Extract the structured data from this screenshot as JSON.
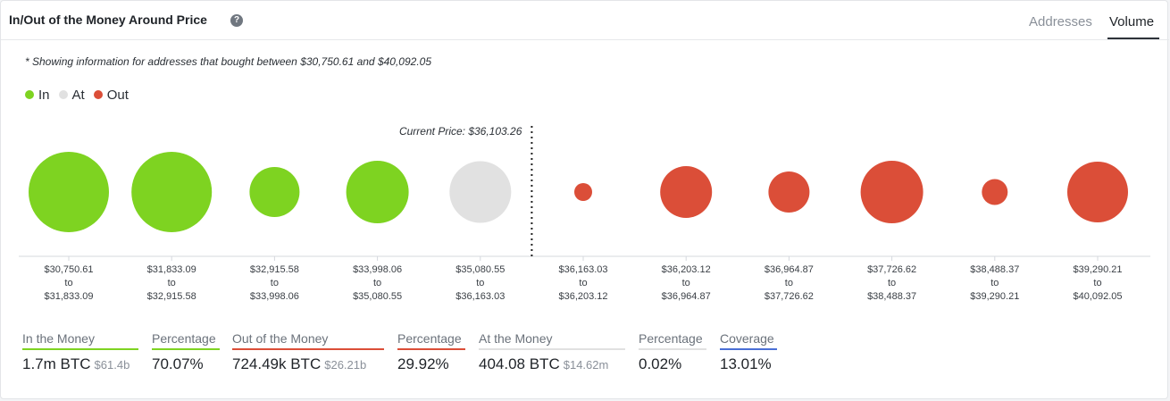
{
  "header": {
    "title": "In/Out of the Money Around Price",
    "help_icon": "question-circle-icon",
    "tabs": [
      {
        "label": "Addresses",
        "active": false
      },
      {
        "label": "Volume",
        "active": true
      }
    ]
  },
  "note": "* Showing information for addresses that bought between $30,750.61 and $40,092.05",
  "colors": {
    "in": "#7ed321",
    "at": "#e1e1e1",
    "out": "#db4e38",
    "coverage": "#4a6fd6"
  },
  "chart_data": {
    "type": "bubble",
    "legend": {
      "position": "top-left",
      "items": [
        {
          "label": "In",
          "key": "in"
        },
        {
          "label": "At",
          "key": "at"
        },
        {
          "label": "Out",
          "key": "out"
        }
      ]
    },
    "current_price_label": "Current Price: $36,103.26",
    "current_price_after_index": 4,
    "relative_size": [
      0.9,
      0.9,
      0.56,
      0.7,
      0.69,
      0.2,
      0.58,
      0.46,
      0.7,
      0.29,
      0.68
    ],
    "buckets": [
      {
        "from": "$30,750.61",
        "to_word": "to",
        "to": "$31,833.09",
        "status": "in"
      },
      {
        "from": "$31,833.09",
        "to_word": "to",
        "to": "$32,915.58",
        "status": "in"
      },
      {
        "from": "$32,915.58",
        "to_word": "to",
        "to": "$33,998.06",
        "status": "in"
      },
      {
        "from": "$33,998.06",
        "to_word": "to",
        "to": "$35,080.55",
        "status": "in"
      },
      {
        "from": "$35,080.55",
        "to_word": "to",
        "to": "$36,163.03",
        "status": "at"
      },
      {
        "from": "$36,163.03",
        "to_word": "to",
        "to": "$36,203.12",
        "status": "out"
      },
      {
        "from": "$36,203.12",
        "to_word": "to",
        "to": "$36,964.87",
        "status": "out"
      },
      {
        "from": "$36,964.87",
        "to_word": "to",
        "to": "$37,726.62",
        "status": "out"
      },
      {
        "from": "$37,726.62",
        "to_word": "to",
        "to": "$38,488.37",
        "status": "out"
      },
      {
        "from": "$38,488.37",
        "to_word": "to",
        "to": "$39,290.21",
        "status": "out"
      },
      {
        "from": "$39,290.21",
        "to_word": "to",
        "to": "$40,092.05",
        "status": "out"
      }
    ]
  },
  "stats": {
    "in_money": {
      "label": "In the Money",
      "value": "1.7m BTC",
      "sub": "$61.4b"
    },
    "in_pct": {
      "label": "Percentage",
      "value": "70.07%"
    },
    "out_money": {
      "label": "Out of the Money",
      "value": "724.49k BTC",
      "sub": "$26.21b"
    },
    "out_pct": {
      "label": "Percentage",
      "value": "29.92%"
    },
    "at_money": {
      "label": "At the Money",
      "value": "404.08 BTC",
      "sub": "$14.62m"
    },
    "at_pct": {
      "label": "Percentage",
      "value": "0.02%"
    },
    "coverage": {
      "label": "Coverage",
      "value": "13.01%"
    }
  }
}
